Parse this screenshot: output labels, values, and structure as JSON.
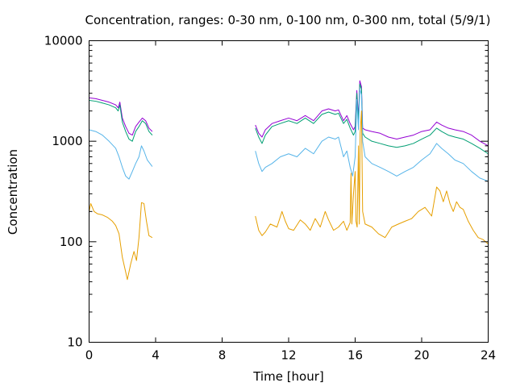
{
  "chart_data": {
    "type": "line",
    "title": "Concentration, ranges: 0-30 nm, 0-100 nm, 0-300 nm, total (5/9/1)",
    "xlabel": "Time [hour]",
    "ylabel": "Concentration",
    "xlim": [
      0,
      24
    ],
    "ylim": [
      10,
      10000
    ],
    "yscale": "log",
    "grid": false,
    "x_ticks": [
      0,
      4,
      8,
      12,
      16,
      20,
      24
    ],
    "y_ticks": [
      10,
      100,
      1000,
      10000
    ],
    "y_tick_labels": [
      "10",
      "100",
      "1000",
      "10000"
    ],
    "colors": {
      "range_0_30": "#e69f00",
      "range_0_100": "#56b4e9",
      "range_0_300": "#009e73",
      "total": "#9400d3",
      "frame": "#000000"
    },
    "series": [
      {
        "key": "total",
        "color": "#9400d3",
        "segments": [
          [
            [
              0,
              2700
            ],
            [
              0.4,
              2650
            ],
            [
              0.8,
              2550
            ],
            [
              1.2,
              2450
            ],
            [
              1.6,
              2300
            ],
            [
              1.75,
              2150
            ],
            [
              1.85,
              2450
            ],
            [
              2.0,
              1700
            ],
            [
              2.2,
              1400
            ],
            [
              2.4,
              1200
            ],
            [
              2.6,
              1150
            ],
            [
              2.8,
              1400
            ],
            [
              3.0,
              1550
            ],
            [
              3.2,
              1700
            ],
            [
              3.4,
              1600
            ],
            [
              3.6,
              1350
            ],
            [
              3.8,
              1250
            ]
          ],
          [
            [
              10,
              1450
            ],
            [
              10.2,
              1200
            ],
            [
              10.4,
              1100
            ],
            [
              10.6,
              1300
            ],
            [
              11,
              1500
            ],
            [
              11.5,
              1600
            ],
            [
              12,
              1700
            ],
            [
              12.5,
              1600
            ],
            [
              13,
              1800
            ],
            [
              13.5,
              1600
            ],
            [
              14,
              2000
            ],
            [
              14.4,
              2100
            ],
            [
              14.8,
              2000
            ],
            [
              15,
              2050
            ],
            [
              15.3,
              1600
            ],
            [
              15.5,
              1800
            ],
            [
              15.7,
              1500
            ],
            [
              15.9,
              1300
            ],
            [
              16.0,
              1400
            ],
            [
              16.1,
              3200
            ],
            [
              16.2,
              1700
            ],
            [
              16.28,
              4000
            ],
            [
              16.38,
              3500
            ],
            [
              16.45,
              1350
            ],
            [
              16.6,
              1300
            ],
            [
              17,
              1250
            ],
            [
              17.5,
              1200
            ],
            [
              18,
              1100
            ],
            [
              18.5,
              1050
            ],
            [
              19,
              1100
            ],
            [
              19.5,
              1150
            ],
            [
              20,
              1250
            ],
            [
              20.5,
              1300
            ],
            [
              20.9,
              1550
            ],
            [
              21.2,
              1450
            ],
            [
              21.6,
              1350
            ],
            [
              22,
              1300
            ],
            [
              22.5,
              1250
            ],
            [
              23,
              1150
            ],
            [
              23.5,
              1000
            ],
            [
              24,
              900
            ]
          ]
        ]
      },
      {
        "key": "range_0_300",
        "color": "#009e73",
        "segments": [
          [
            [
              0,
              2550
            ],
            [
              0.4,
              2500
            ],
            [
              0.8,
              2400
            ],
            [
              1.2,
              2300
            ],
            [
              1.6,
              2150
            ],
            [
              1.75,
              2000
            ],
            [
              1.85,
              2300
            ],
            [
              2.0,
              1550
            ],
            [
              2.2,
              1250
            ],
            [
              2.4,
              1050
            ],
            [
              2.6,
              1000
            ],
            [
              2.8,
              1250
            ],
            [
              3.0,
              1400
            ],
            [
              3.2,
              1600
            ],
            [
              3.4,
              1500
            ],
            [
              3.6,
              1250
            ],
            [
              3.8,
              1150
            ]
          ],
          [
            [
              10,
              1350
            ],
            [
              10.2,
              1100
            ],
            [
              10.4,
              950
            ],
            [
              10.6,
              1150
            ],
            [
              11,
              1400
            ],
            [
              11.5,
              1500
            ],
            [
              12,
              1600
            ],
            [
              12.5,
              1500
            ],
            [
              13,
              1700
            ],
            [
              13.5,
              1500
            ],
            [
              14,
              1850
            ],
            [
              14.4,
              1950
            ],
            [
              14.8,
              1850
            ],
            [
              15,
              1900
            ],
            [
              15.3,
              1500
            ],
            [
              15.5,
              1650
            ],
            [
              15.7,
              1350
            ],
            [
              15.9,
              1150
            ],
            [
              16.0,
              1250
            ],
            [
              16.1,
              3000
            ],
            [
              16.2,
              1550
            ],
            [
              16.28,
              3700
            ],
            [
              16.38,
              3300
            ],
            [
              16.45,
              1200
            ],
            [
              16.6,
              1100
            ],
            [
              17,
              1000
            ],
            [
              17.5,
              950
            ],
            [
              18,
              900
            ],
            [
              18.5,
              870
            ],
            [
              19,
              900
            ],
            [
              19.5,
              950
            ],
            [
              20,
              1050
            ],
            [
              20.5,
              1150
            ],
            [
              20.9,
              1350
            ],
            [
              21.2,
              1250
            ],
            [
              21.6,
              1150
            ],
            [
              22,
              1100
            ],
            [
              22.5,
              1050
            ],
            [
              23,
              950
            ],
            [
              23.5,
              850
            ],
            [
              24,
              750
            ]
          ]
        ]
      },
      {
        "key": "range_0_100",
        "color": "#56b4e9",
        "segments": [
          [
            [
              0,
              1300
            ],
            [
              0.4,
              1250
            ],
            [
              0.8,
              1150
            ],
            [
              1.2,
              1000
            ],
            [
              1.6,
              850
            ],
            [
              1.8,
              700
            ],
            [
              2.0,
              550
            ],
            [
              2.2,
              450
            ],
            [
              2.4,
              420
            ],
            [
              2.6,
              500
            ],
            [
              2.8,
              600
            ],
            [
              3.0,
              700
            ],
            [
              3.15,
              900
            ],
            [
              3.3,
              800
            ],
            [
              3.5,
              650
            ],
            [
              3.8,
              560
            ]
          ],
          [
            [
              10,
              800
            ],
            [
              10.2,
              600
            ],
            [
              10.4,
              500
            ],
            [
              10.6,
              550
            ],
            [
              11,
              600
            ],
            [
              11.5,
              700
            ],
            [
              12,
              750
            ],
            [
              12.5,
              700
            ],
            [
              13,
              850
            ],
            [
              13.5,
              750
            ],
            [
              14,
              1000
            ],
            [
              14.4,
              1100
            ],
            [
              14.8,
              1050
            ],
            [
              15,
              1100
            ],
            [
              15.3,
              700
            ],
            [
              15.5,
              800
            ],
            [
              15.7,
              550
            ],
            [
              15.85,
              450
            ],
            [
              16.0,
              700
            ],
            [
              16.1,
              2600
            ],
            [
              16.2,
              1300
            ],
            [
              16.28,
              3300
            ],
            [
              16.38,
              2900
            ],
            [
              16.45,
              1000
            ],
            [
              16.6,
              700
            ],
            [
              17,
              600
            ],
            [
              17.5,
              550
            ],
            [
              18,
              500
            ],
            [
              18.5,
              450
            ],
            [
              19,
              500
            ],
            [
              19.5,
              550
            ],
            [
              20,
              650
            ],
            [
              20.5,
              750
            ],
            [
              20.9,
              950
            ],
            [
              21.2,
              850
            ],
            [
              21.6,
              750
            ],
            [
              22,
              650
            ],
            [
              22.5,
              600
            ],
            [
              23,
              500
            ],
            [
              23.5,
              430
            ],
            [
              24,
              400
            ]
          ]
        ]
      },
      {
        "key": "range_0_30",
        "color": "#e69f00",
        "segments": [
          [
            [
              0,
              200
            ],
            [
              0.1,
              240
            ],
            [
              0.3,
              200
            ],
            [
              0.5,
              190
            ],
            [
              0.8,
              185
            ],
            [
              1.1,
              175
            ],
            [
              1.4,
              160
            ],
            [
              1.6,
              145
            ],
            [
              1.8,
              120
            ],
            [
              2.0,
              70
            ],
            [
              2.2,
              50
            ],
            [
              2.3,
              42
            ],
            [
              2.5,
              60
            ],
            [
              2.7,
              80
            ],
            [
              2.85,
              65
            ],
            [
              3.0,
              110
            ],
            [
              3.15,
              245
            ],
            [
              3.3,
              240
            ],
            [
              3.45,
              160
            ],
            [
              3.6,
              115
            ],
            [
              3.8,
              110
            ]
          ],
          [
            [
              10,
              180
            ],
            [
              10.2,
              130
            ],
            [
              10.4,
              115
            ],
            [
              10.6,
              125
            ],
            [
              10.9,
              150
            ],
            [
              11.3,
              140
            ],
            [
              11.6,
              200
            ],
            [
              11.8,
              160
            ],
            [
              12,
              135
            ],
            [
              12.3,
              130
            ],
            [
              12.7,
              165
            ],
            [
              13,
              150
            ],
            [
              13.3,
              130
            ],
            [
              13.6,
              170
            ],
            [
              13.9,
              140
            ],
            [
              14.2,
              200
            ],
            [
              14.4,
              165
            ],
            [
              14.7,
              130
            ],
            [
              15,
              140
            ],
            [
              15.3,
              160
            ],
            [
              15.5,
              130
            ],
            [
              15.7,
              155
            ],
            [
              15.75,
              480
            ],
            [
              15.8,
              150
            ],
            [
              15.9,
              300
            ],
            [
              16.0,
              500
            ],
            [
              16.05,
              160
            ],
            [
              16.12,
              140
            ],
            [
              16.2,
              900
            ],
            [
              16.25,
              150
            ],
            [
              16.3,
              1200
            ],
            [
              16.38,
              2000
            ],
            [
              16.45,
              200
            ],
            [
              16.6,
              150
            ],
            [
              17,
              140
            ],
            [
              17.4,
              120
            ],
            [
              17.8,
              110
            ],
            [
              18.2,
              140
            ],
            [
              18.6,
              150
            ],
            [
              19,
              160
            ],
            [
              19.4,
              170
            ],
            [
              19.8,
              200
            ],
            [
              20.2,
              220
            ],
            [
              20.6,
              180
            ],
            [
              20.9,
              350
            ],
            [
              21.1,
              320
            ],
            [
              21.3,
              250
            ],
            [
              21.5,
              320
            ],
            [
              21.7,
              240
            ],
            [
              21.9,
              200
            ],
            [
              22.1,
              250
            ],
            [
              22.3,
              220
            ],
            [
              22.5,
              210
            ],
            [
              22.8,
              160
            ],
            [
              23.1,
              130
            ],
            [
              23.4,
              110
            ],
            [
              23.7,
              105
            ],
            [
              24,
              95
            ]
          ]
        ]
      }
    ]
  }
}
